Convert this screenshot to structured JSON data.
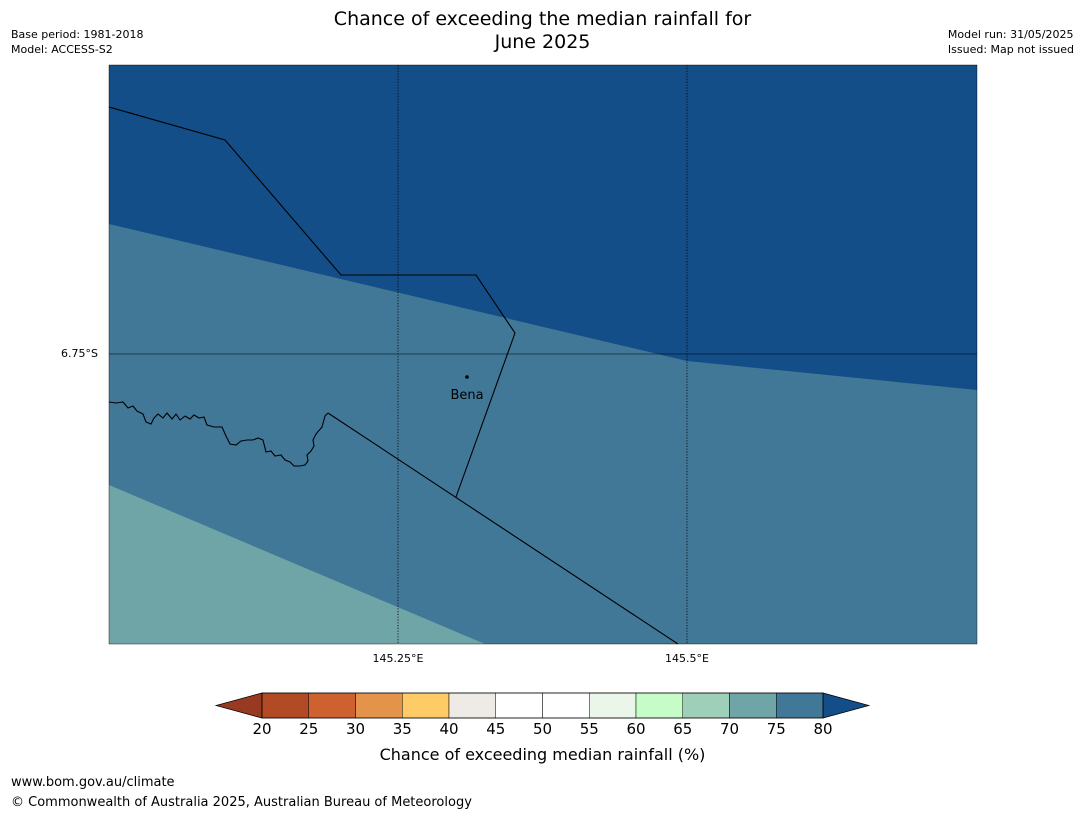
{
  "title": {
    "line1": "Chance of exceeding the median rainfall for",
    "line2": "June 2025"
  },
  "meta_left": {
    "base_period": "Base period: 1981-2018",
    "model": "Model: ACCESS-S2"
  },
  "meta_right": {
    "model_run": "Model run: 31/05/2025",
    "issued": "Issued: Map not issued"
  },
  "map": {
    "lat_label": "6.75°S",
    "lon_labels": [
      "145.25°E",
      "145.5°E"
    ],
    "place": {
      "name": "Bena"
    },
    "colors": {
      "zone_80_plus": "#134e88",
      "zone_75_80": "#417898",
      "zone_70_75": "#6fa5a6",
      "border": "#000000"
    }
  },
  "colorbar": {
    "title": "Chance of exceeding median rainfall (%)",
    "ticks": [
      "20",
      "25",
      "30",
      "35",
      "40",
      "45",
      "50",
      "55",
      "60",
      "65",
      "70",
      "75",
      "80"
    ],
    "colors": [
      "#b24a26",
      "#cd6230",
      "#e3944a",
      "#fecb66",
      "#eeeae5",
      "#ffffff",
      "#ffffff",
      "#eaf6ea",
      "#c6fcc7",
      "#9ecfb8",
      "#6fa5a6",
      "#417898"
    ],
    "under_color": "#983922",
    "over_color": "#134e88"
  },
  "footer": {
    "url": "www.bom.gov.au/climate",
    "copyright": "© Commonwealth of Australia 2025, Australian Bureau of Meteorology"
  }
}
